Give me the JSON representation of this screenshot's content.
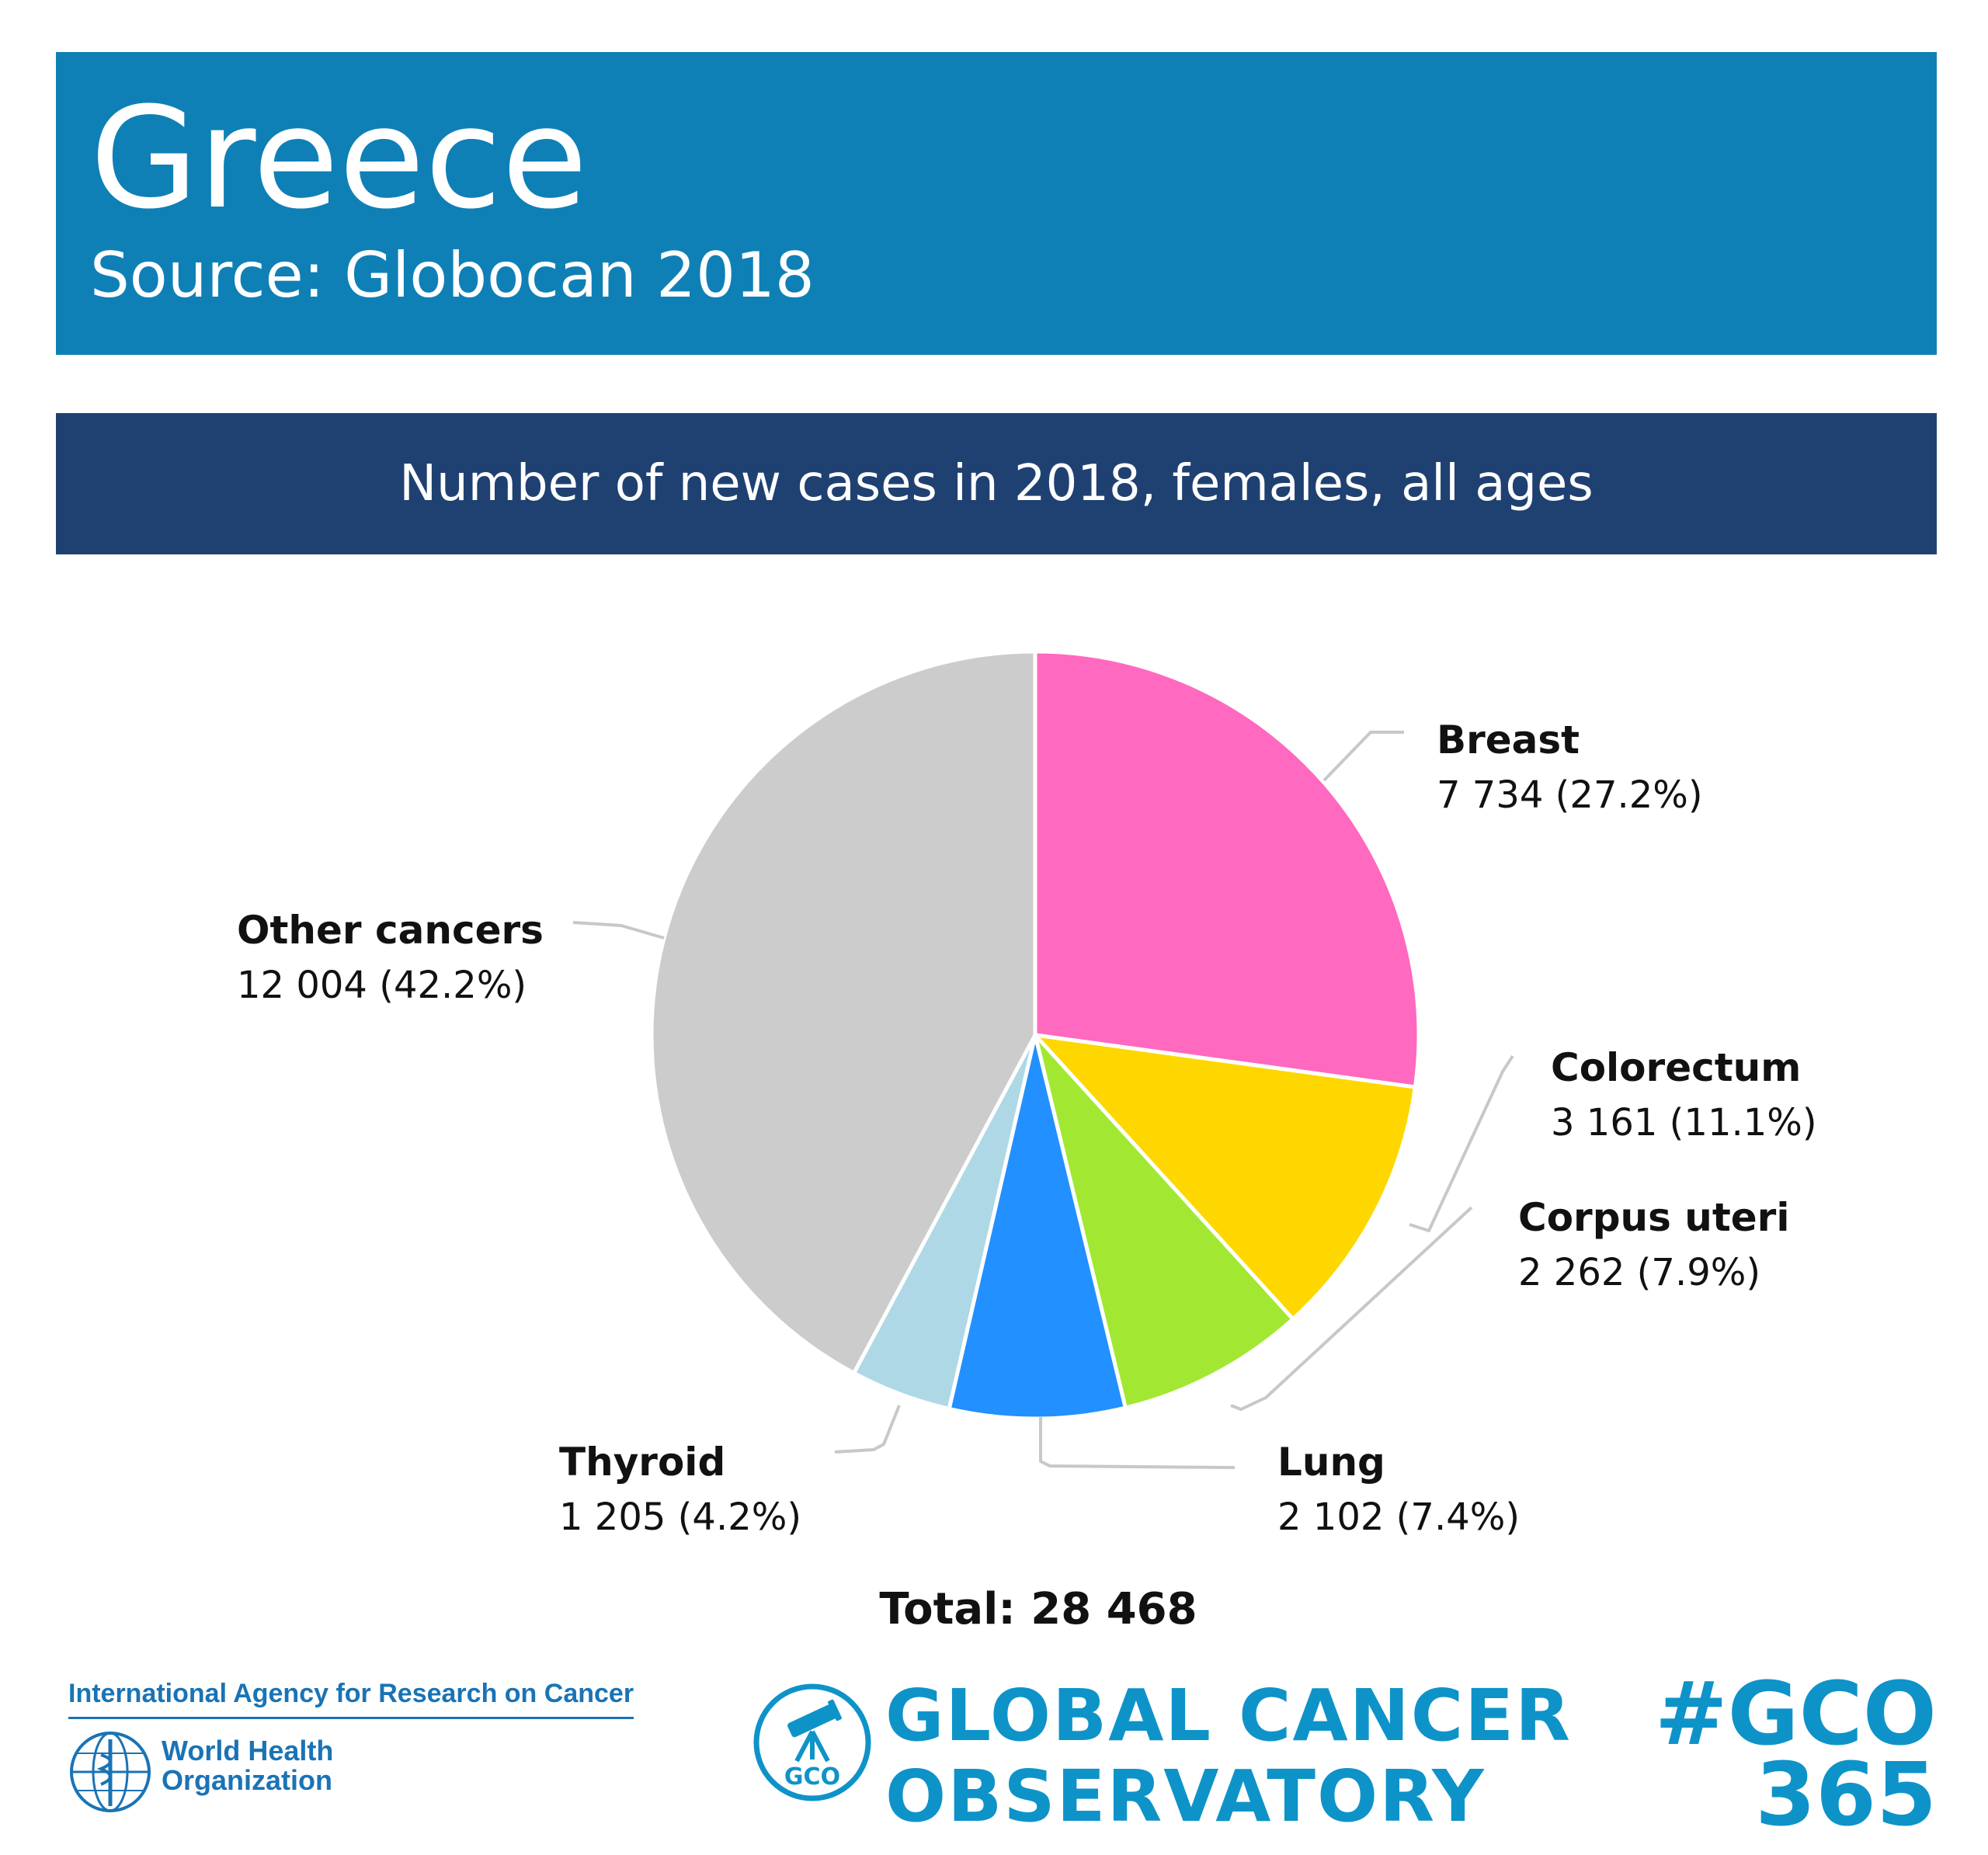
{
  "header": {
    "title": "Greece",
    "subtitle": "Source: Globocan 2018"
  },
  "banner": {
    "text": "Number of new cases in 2018, females, all ages"
  },
  "chart_data": {
    "type": "pie",
    "title": "Number of new cases in 2018, females, all ages",
    "start_angle_deg": 0,
    "direction": "clockwise",
    "slices": [
      {
        "name": "Breast",
        "value": 7734,
        "label": "7 734 (27.2%)",
        "color": "#ff69bf"
      },
      {
        "name": "Colorectum",
        "value": 3161,
        "label": "3 161 (11.1%)",
        "color": "#ffd700"
      },
      {
        "name": "Corpus uteri",
        "value": 2262,
        "label": "2 262 (7.9%)",
        "color": "#a2e832"
      },
      {
        "name": "Lung",
        "value": 2102,
        "label": "2 102 (7.4%)",
        "color": "#2290ff"
      },
      {
        "name": "Thyroid",
        "value": 1205,
        "label": "1 205 (4.2%)",
        "color": "#aed8e5"
      },
      {
        "name": "Other cancers",
        "value": 12004,
        "label": "12 004 (42.2%)",
        "color": "#cccccc"
      }
    ],
    "total_label": "Total: 28 468"
  },
  "footer": {
    "iarc": "International Agency for Research on Cancer",
    "who_line1": "World Health",
    "who_line2": "Organization",
    "gco_emblem_text": "GCO",
    "gco_line1": "GLOBAL CANCER",
    "gco_line2": "OBSERVATORY",
    "hashtag_line1": "#GCO",
    "hashtag_line2": "365"
  },
  "colors": {
    "header_bg": "#0f80b6",
    "banner_bg": "#1f4172",
    "brand_blue": "#0e93c9",
    "leader_line": "#c8c8c8"
  }
}
